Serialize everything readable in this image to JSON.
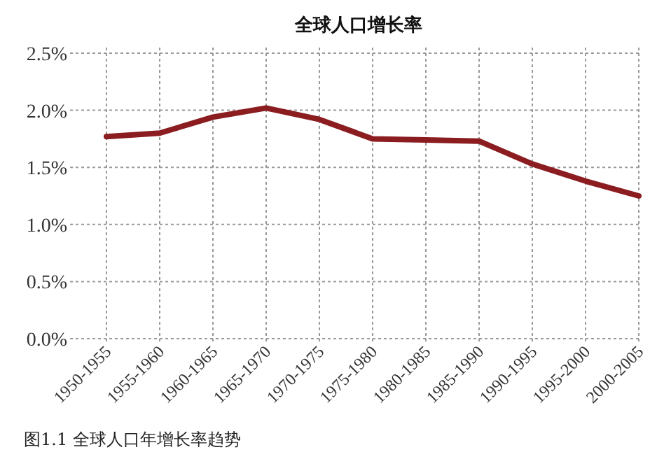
{
  "chart_data": {
    "type": "line",
    "title": "全球人口增长率",
    "categories": [
      "1950-1955",
      "1955-1960",
      "1960-1965",
      "1965-1970",
      "1970-1975",
      "1975-1980",
      "1980-1985",
      "1985-1990",
      "1990-1995",
      "1995-2000",
      "2000-2005"
    ],
    "series": [
      {
        "color": "#8b1c1f",
        "values": [
          1.77,
          1.8,
          1.94,
          2.02,
          1.92,
          1.75,
          1.74,
          1.73,
          1.53,
          1.38,
          1.25
        ]
      }
    ],
    "ylim": [
      0,
      2.5
    ],
    "yticks": [
      {
        "value": 0,
        "label": "0.0%"
      },
      {
        "value": 0.5,
        "label": "0.5%"
      },
      {
        "value": 1,
        "label": "1.0%"
      },
      {
        "value": 1.5,
        "label": "1.5%"
      },
      {
        "value": 2,
        "label": "2.0%"
      },
      {
        "value": 2.5,
        "label": "2.5%"
      }
    ],
    "grid": true,
    "marker": "none",
    "line_style": "solid",
    "annotations": [
      "图1.1  全球人口年增长率趋势"
    ]
  }
}
